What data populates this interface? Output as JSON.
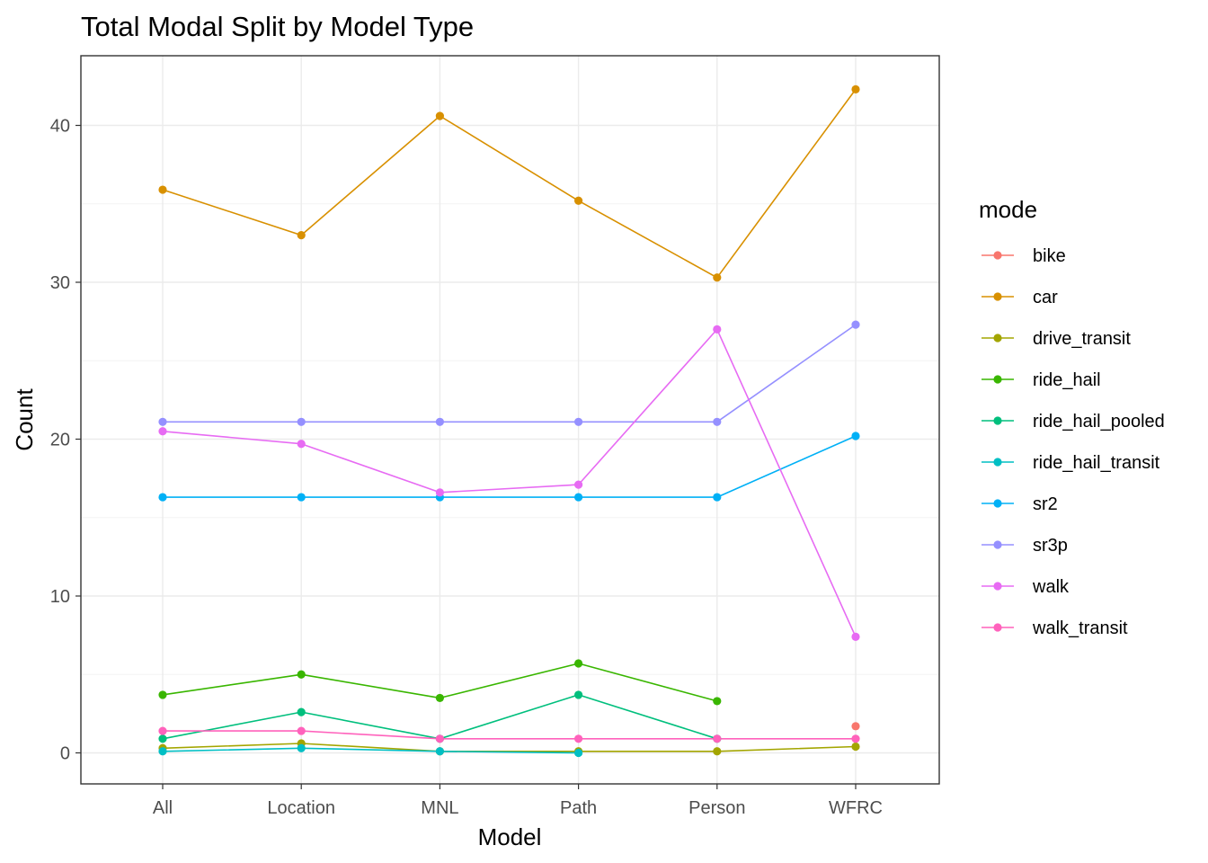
{
  "chart_data": {
    "type": "line",
    "title": "Total Modal Split by Model Type",
    "xlabel": "Model",
    "ylabel": "Count",
    "categories": [
      "All",
      "Location",
      "MNL",
      "Path",
      "Person",
      "WFRC"
    ],
    "ylim": [
      -2,
      44
    ],
    "yticks": [
      0,
      10,
      20,
      30,
      40
    ],
    "grid": true,
    "legend": {
      "title": "mode",
      "placement": "right"
    },
    "series": [
      {
        "name": "bike",
        "color": "#F8766D",
        "values": [
          null,
          null,
          null,
          null,
          null,
          1.7
        ]
      },
      {
        "name": "car",
        "color": "#D89000",
        "values": [
          35.9,
          33.0,
          40.6,
          35.2,
          30.3,
          42.3
        ]
      },
      {
        "name": "drive_transit",
        "color": "#A3A500",
        "values": [
          0.3,
          0.6,
          0.1,
          0.1,
          0.1,
          0.4
        ]
      },
      {
        "name": "ride_hail",
        "color": "#39B600",
        "values": [
          3.7,
          5.0,
          3.5,
          5.7,
          3.3,
          null
        ]
      },
      {
        "name": "ride_hail_pooled",
        "color": "#00BF7D",
        "values": [
          0.9,
          2.6,
          0.9,
          3.7,
          0.9,
          null
        ]
      },
      {
        "name": "ride_hail_transit",
        "color": "#00BFC4",
        "values": [
          0.1,
          0.3,
          0.1,
          0.0,
          null,
          null
        ]
      },
      {
        "name": "sr2",
        "color": "#00B0F6",
        "values": [
          16.3,
          16.3,
          16.3,
          16.3,
          16.3,
          20.2
        ]
      },
      {
        "name": "sr3p",
        "color": "#9590FF",
        "values": [
          21.1,
          21.1,
          21.1,
          21.1,
          21.1,
          27.3
        ]
      },
      {
        "name": "walk",
        "color": "#E76BF3",
        "values": [
          20.5,
          19.7,
          16.6,
          17.1,
          27.0,
          7.4
        ]
      },
      {
        "name": "walk_transit",
        "color": "#FF62BC",
        "values": [
          1.4,
          1.4,
          0.9,
          0.9,
          0.9,
          0.9
        ]
      }
    ]
  }
}
